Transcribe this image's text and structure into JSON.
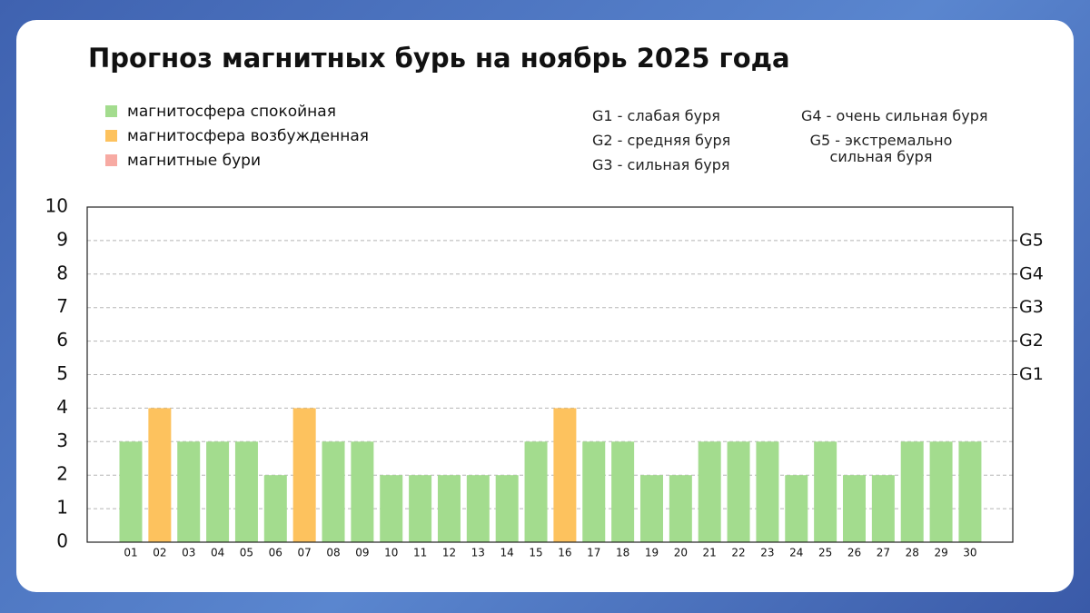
{
  "chart_data": {
    "type": "bar",
    "title": "Прогноз магнитных бурь на ноябрь 2025 года",
    "legend": [
      {
        "label": "магнитосфера спокойная",
        "color": "#a3dc8e"
      },
      {
        "label": "магнитосфера возбужденная",
        "color": "#fdc25e"
      },
      {
        "label": "магнитные бури",
        "color": "#f7aaa3"
      }
    ],
    "storm_scale": [
      "G1 - слабая буря",
      "G2 - средняя буря",
      "G3 - сильная буря",
      "G4 - очень сильная буря",
      "G5 - экстремально сильная буря"
    ],
    "categories": [
      "01",
      "02",
      "03",
      "04",
      "05",
      "06",
      "07",
      "08",
      "09",
      "10",
      "11",
      "12",
      "13",
      "14",
      "15",
      "16",
      "17",
      "18",
      "19",
      "20",
      "21",
      "22",
      "23",
      "24",
      "25",
      "26",
      "27",
      "28",
      "29",
      "30"
    ],
    "values": [
      3,
      4,
      3,
      3,
      3,
      2,
      4,
      3,
      3,
      2,
      2,
      2,
      2,
      2,
      3,
      4,
      3,
      3,
      2,
      2,
      3,
      3,
      3,
      2,
      3,
      2,
      2,
      3,
      3,
      3
    ],
    "colors": [
      "#a3dc8e",
      "#fdc25e",
      "#a3dc8e",
      "#a3dc8e",
      "#a3dc8e",
      "#a3dc8e",
      "#fdc25e",
      "#a3dc8e",
      "#a3dc8e",
      "#a3dc8e",
      "#a3dc8e",
      "#a3dc8e",
      "#a3dc8e",
      "#a3dc8e",
      "#a3dc8e",
      "#fdc25e",
      "#a3dc8e",
      "#a3dc8e",
      "#a3dc8e",
      "#a3dc8e",
      "#a3dc8e",
      "#a3dc8e",
      "#a3dc8e",
      "#a3dc8e",
      "#a3dc8e",
      "#a3dc8e",
      "#a3dc8e",
      "#a3dc8e",
      "#a3dc8e",
      "#a3dc8e"
    ],
    "ylim": [
      0,
      10
    ],
    "yticks": [
      0,
      1,
      2,
      3,
      4,
      5,
      6,
      7,
      8,
      9,
      10
    ],
    "y2lim": [
      0,
      10
    ],
    "y2ticks": [
      {
        "value": 5,
        "label": "G1"
      },
      {
        "value": 6,
        "label": "G2"
      },
      {
        "value": 7,
        "label": "G3"
      },
      {
        "value": 8,
        "label": "G4"
      },
      {
        "value": 9,
        "label": "G5"
      }
    ],
    "grid": true
  }
}
